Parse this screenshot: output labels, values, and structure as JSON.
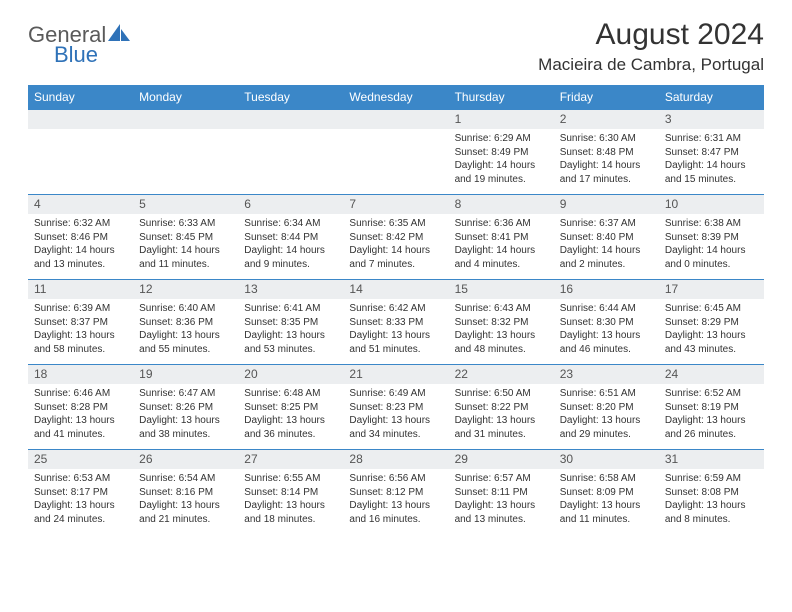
{
  "logo": {
    "general": "General",
    "blue": "Blue"
  },
  "title": "August 2024",
  "location": "Macieira de Cambra, Portugal",
  "colors": {
    "header_bg": "#3b87c8",
    "header_text": "#ffffff",
    "daynum_bg": "#eceef0",
    "daynum_text": "#555555",
    "row_border": "#3b87c8",
    "body_text": "#333333",
    "logo_general": "#5a5a5a",
    "logo_blue": "#2f72b8"
  },
  "weekdays": [
    "Sunday",
    "Monday",
    "Tuesday",
    "Wednesday",
    "Thursday",
    "Friday",
    "Saturday"
  ],
  "weeks": [
    [
      {
        "n": "",
        "l1": "",
        "l2": "",
        "l3": "",
        "l4": ""
      },
      {
        "n": "",
        "l1": "",
        "l2": "",
        "l3": "",
        "l4": ""
      },
      {
        "n": "",
        "l1": "",
        "l2": "",
        "l3": "",
        "l4": ""
      },
      {
        "n": "",
        "l1": "",
        "l2": "",
        "l3": "",
        "l4": ""
      },
      {
        "n": "1",
        "l1": "Sunrise: 6:29 AM",
        "l2": "Sunset: 8:49 PM",
        "l3": "Daylight: 14 hours",
        "l4": "and 19 minutes."
      },
      {
        "n": "2",
        "l1": "Sunrise: 6:30 AM",
        "l2": "Sunset: 8:48 PM",
        "l3": "Daylight: 14 hours",
        "l4": "and 17 minutes."
      },
      {
        "n": "3",
        "l1": "Sunrise: 6:31 AM",
        "l2": "Sunset: 8:47 PM",
        "l3": "Daylight: 14 hours",
        "l4": "and 15 minutes."
      }
    ],
    [
      {
        "n": "4",
        "l1": "Sunrise: 6:32 AM",
        "l2": "Sunset: 8:46 PM",
        "l3": "Daylight: 14 hours",
        "l4": "and 13 minutes."
      },
      {
        "n": "5",
        "l1": "Sunrise: 6:33 AM",
        "l2": "Sunset: 8:45 PM",
        "l3": "Daylight: 14 hours",
        "l4": "and 11 minutes."
      },
      {
        "n": "6",
        "l1": "Sunrise: 6:34 AM",
        "l2": "Sunset: 8:44 PM",
        "l3": "Daylight: 14 hours",
        "l4": "and 9 minutes."
      },
      {
        "n": "7",
        "l1": "Sunrise: 6:35 AM",
        "l2": "Sunset: 8:42 PM",
        "l3": "Daylight: 14 hours",
        "l4": "and 7 minutes."
      },
      {
        "n": "8",
        "l1": "Sunrise: 6:36 AM",
        "l2": "Sunset: 8:41 PM",
        "l3": "Daylight: 14 hours",
        "l4": "and 4 minutes."
      },
      {
        "n": "9",
        "l1": "Sunrise: 6:37 AM",
        "l2": "Sunset: 8:40 PM",
        "l3": "Daylight: 14 hours",
        "l4": "and 2 minutes."
      },
      {
        "n": "10",
        "l1": "Sunrise: 6:38 AM",
        "l2": "Sunset: 8:39 PM",
        "l3": "Daylight: 14 hours",
        "l4": "and 0 minutes."
      }
    ],
    [
      {
        "n": "11",
        "l1": "Sunrise: 6:39 AM",
        "l2": "Sunset: 8:37 PM",
        "l3": "Daylight: 13 hours",
        "l4": "and 58 minutes."
      },
      {
        "n": "12",
        "l1": "Sunrise: 6:40 AM",
        "l2": "Sunset: 8:36 PM",
        "l3": "Daylight: 13 hours",
        "l4": "and 55 minutes."
      },
      {
        "n": "13",
        "l1": "Sunrise: 6:41 AM",
        "l2": "Sunset: 8:35 PM",
        "l3": "Daylight: 13 hours",
        "l4": "and 53 minutes."
      },
      {
        "n": "14",
        "l1": "Sunrise: 6:42 AM",
        "l2": "Sunset: 8:33 PM",
        "l3": "Daylight: 13 hours",
        "l4": "and 51 minutes."
      },
      {
        "n": "15",
        "l1": "Sunrise: 6:43 AM",
        "l2": "Sunset: 8:32 PM",
        "l3": "Daylight: 13 hours",
        "l4": "and 48 minutes."
      },
      {
        "n": "16",
        "l1": "Sunrise: 6:44 AM",
        "l2": "Sunset: 8:30 PM",
        "l3": "Daylight: 13 hours",
        "l4": "and 46 minutes."
      },
      {
        "n": "17",
        "l1": "Sunrise: 6:45 AM",
        "l2": "Sunset: 8:29 PM",
        "l3": "Daylight: 13 hours",
        "l4": "and 43 minutes."
      }
    ],
    [
      {
        "n": "18",
        "l1": "Sunrise: 6:46 AM",
        "l2": "Sunset: 8:28 PM",
        "l3": "Daylight: 13 hours",
        "l4": "and 41 minutes."
      },
      {
        "n": "19",
        "l1": "Sunrise: 6:47 AM",
        "l2": "Sunset: 8:26 PM",
        "l3": "Daylight: 13 hours",
        "l4": "and 38 minutes."
      },
      {
        "n": "20",
        "l1": "Sunrise: 6:48 AM",
        "l2": "Sunset: 8:25 PM",
        "l3": "Daylight: 13 hours",
        "l4": "and 36 minutes."
      },
      {
        "n": "21",
        "l1": "Sunrise: 6:49 AM",
        "l2": "Sunset: 8:23 PM",
        "l3": "Daylight: 13 hours",
        "l4": "and 34 minutes."
      },
      {
        "n": "22",
        "l1": "Sunrise: 6:50 AM",
        "l2": "Sunset: 8:22 PM",
        "l3": "Daylight: 13 hours",
        "l4": "and 31 minutes."
      },
      {
        "n": "23",
        "l1": "Sunrise: 6:51 AM",
        "l2": "Sunset: 8:20 PM",
        "l3": "Daylight: 13 hours",
        "l4": "and 29 minutes."
      },
      {
        "n": "24",
        "l1": "Sunrise: 6:52 AM",
        "l2": "Sunset: 8:19 PM",
        "l3": "Daylight: 13 hours",
        "l4": "and 26 minutes."
      }
    ],
    [
      {
        "n": "25",
        "l1": "Sunrise: 6:53 AM",
        "l2": "Sunset: 8:17 PM",
        "l3": "Daylight: 13 hours",
        "l4": "and 24 minutes."
      },
      {
        "n": "26",
        "l1": "Sunrise: 6:54 AM",
        "l2": "Sunset: 8:16 PM",
        "l3": "Daylight: 13 hours",
        "l4": "and 21 minutes."
      },
      {
        "n": "27",
        "l1": "Sunrise: 6:55 AM",
        "l2": "Sunset: 8:14 PM",
        "l3": "Daylight: 13 hours",
        "l4": "and 18 minutes."
      },
      {
        "n": "28",
        "l1": "Sunrise: 6:56 AM",
        "l2": "Sunset: 8:12 PM",
        "l3": "Daylight: 13 hours",
        "l4": "and 16 minutes."
      },
      {
        "n": "29",
        "l1": "Sunrise: 6:57 AM",
        "l2": "Sunset: 8:11 PM",
        "l3": "Daylight: 13 hours",
        "l4": "and 13 minutes."
      },
      {
        "n": "30",
        "l1": "Sunrise: 6:58 AM",
        "l2": "Sunset: 8:09 PM",
        "l3": "Daylight: 13 hours",
        "l4": "and 11 minutes."
      },
      {
        "n": "31",
        "l1": "Sunrise: 6:59 AM",
        "l2": "Sunset: 8:08 PM",
        "l3": "Daylight: 13 hours",
        "l4": "and 8 minutes."
      }
    ]
  ]
}
